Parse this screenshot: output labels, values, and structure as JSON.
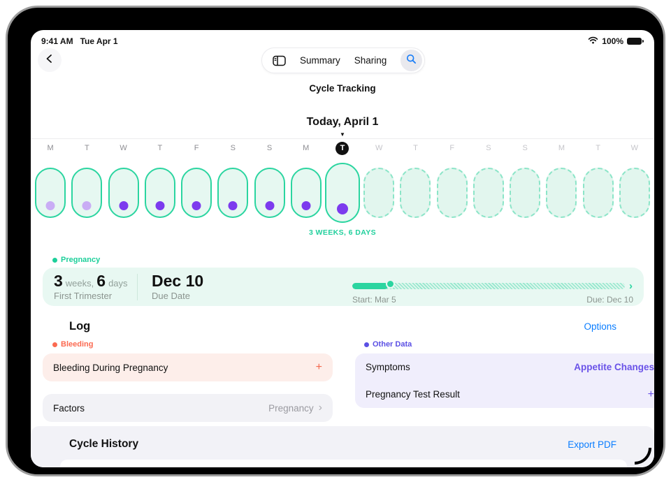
{
  "status_bar": {
    "time": "9:41 AM",
    "date": "Tue Apr 1",
    "battery_percent": "100%"
  },
  "toolbar": {
    "tabs": [
      {
        "label": "Summary"
      },
      {
        "label": "Sharing"
      }
    ]
  },
  "header": {
    "title": "Cycle Tracking",
    "today_label": "Today, April 1"
  },
  "timeline": {
    "gestation_label": "3 WEEKS, 6 DAYS",
    "days": [
      {
        "letter": "M",
        "state": "past",
        "dot": "light"
      },
      {
        "letter": "T",
        "state": "past",
        "dot": "light"
      },
      {
        "letter": "W",
        "state": "past",
        "dot": "dark"
      },
      {
        "letter": "T",
        "state": "past",
        "dot": "dark"
      },
      {
        "letter": "F",
        "state": "past",
        "dot": "dark"
      },
      {
        "letter": "S",
        "state": "past",
        "dot": "dark"
      },
      {
        "letter": "S",
        "state": "past",
        "dot": "dark"
      },
      {
        "letter": "M",
        "state": "past",
        "dot": "dark"
      },
      {
        "letter": "T",
        "state": "today",
        "dot": "dark"
      },
      {
        "letter": "W",
        "state": "future",
        "dot": null
      },
      {
        "letter": "T",
        "state": "future",
        "dot": null
      },
      {
        "letter": "F",
        "state": "future",
        "dot": null
      },
      {
        "letter": "S",
        "state": "future",
        "dot": null
      },
      {
        "letter": "S",
        "state": "future",
        "dot": null
      },
      {
        "letter": "M",
        "state": "future",
        "dot": null
      },
      {
        "letter": "T",
        "state": "future",
        "dot": null
      },
      {
        "letter": "W",
        "state": "future",
        "dot": null
      }
    ]
  },
  "pregnancy": {
    "section_label": "Pregnancy",
    "weeks_value": "3",
    "weeks_unit": "weeks,",
    "days_value": "6",
    "days_unit": "days",
    "trimester": "First Trimester",
    "due_date_value": "Dec 10",
    "due_date_label": "Due Date",
    "progress": {
      "percent": 13,
      "start_label": "Start: Mar 5",
      "due_label": "Due: Dec 10"
    }
  },
  "log": {
    "heading": "Log",
    "options_label": "Options",
    "bleeding": {
      "section_label": "Bleeding",
      "item": "Bleeding During Pregnancy",
      "add_label": "+"
    },
    "factors": {
      "label": "Factors",
      "value": "Pregnancy",
      "chevron": "›"
    },
    "other_data": {
      "section_label": "Other Data",
      "rows": [
        {
          "label": "Symptoms",
          "value": "Appetite Changes"
        },
        {
          "label": "Pregnancy Test Result",
          "value": "+"
        }
      ]
    }
  },
  "cycle_history": {
    "heading": "Cycle History",
    "export_label": "Export PDF"
  },
  "colors": {
    "teal": "#2bd5a0",
    "mint_fill": "#e6f8f1",
    "purple_dot": "#7c3bee",
    "light_purple_dot": "#c9adf5",
    "coral": "#fb6a51",
    "other_purple": "#5b50e4",
    "value_purple": "#6a52e8",
    "link_blue": "#0a7dff"
  }
}
